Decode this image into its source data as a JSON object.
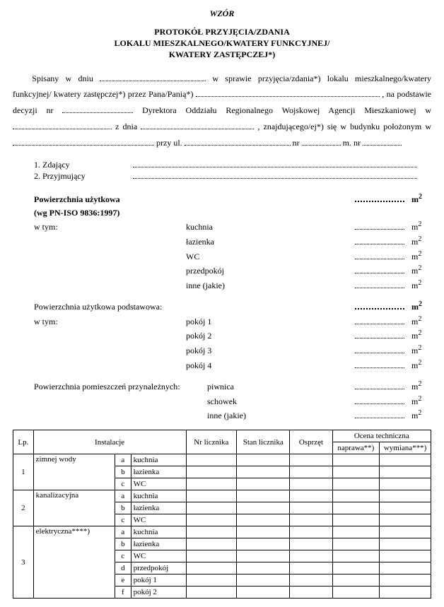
{
  "header": {
    "wzor": "WZÓR",
    "title_l1": "PROTOKÓŁ PRZYJĘCIA/ZDANIA",
    "title_l2": "LOKALU MIESZKALNEGO/KWATERY FUNKCYJNEJ/",
    "title_l3": "KWATERY ZASTĘPCZEJ*)"
  },
  "intro": {
    "p1a": "Spisany w dniu ",
    "p1b": " w sprawie przyjęcia/zdania*) lokalu mieszkalnego/kwatery funkcyjnej/",
    "p2a": "kwatery zastępczej*) przez Pana/Panią*) ",
    "p2b": ", na podstawie decyzji",
    "p3a": "nr ",
    "p3b": " Dyrektora Oddziału Regionalnego Wojskowej Agencji Mieszkaniowej w ",
    "p4a": "z dnia ",
    "p4b": ", znajdującego/ej*) się w budynku położonym w ",
    "p5a": "przy ul. ",
    "p5b": " nr ",
    "p5c": " m. nr "
  },
  "people": {
    "l1": "1. Zdający",
    "l2": "2. Przyjmujący"
  },
  "areas": {
    "useful_label": "Powierzchnia użytkowa",
    "useful_note": "(wg PN-ISO 9836:1997)",
    "incl": "w tym:",
    "basic_label": "Powierzchnia użytkowa podstawowa:",
    "aux_label": "Powierzchnia pomieszczeń przynależnych:",
    "rooms_util": [
      "kuchnia",
      "łazienka",
      "WC",
      "przedpokój",
      "inne (jakie)"
    ],
    "rooms_basic": [
      "pokój 1",
      "pokój 2",
      "pokój 3",
      "pokój 4"
    ],
    "rooms_aux": [
      "piwnica",
      "schowek",
      "inne (jakie)"
    ],
    "unit": "m",
    "unit_sup": "2"
  },
  "table": {
    "hdr": {
      "lp": "Lp.",
      "inst": "Instalacje",
      "nr": "Nr licznika",
      "stan": "Stan licznika",
      "osp": "Osprzęt",
      "ocena": "Ocena techniczna",
      "napr": "naprawa**)",
      "wym": "wymiana***)"
    },
    "rows": [
      {
        "lp": "1",
        "name": "zimnej wody",
        "sub": [
          {
            "l": "a",
            "r": "kuchnia"
          },
          {
            "l": "b",
            "r": "łazienka"
          },
          {
            "l": "c",
            "r": "WC"
          }
        ]
      },
      {
        "lp": "2",
        "name": "kanalizacyjna",
        "sub": [
          {
            "l": "a",
            "r": "kuchnia"
          },
          {
            "l": "b",
            "r": "łazienka"
          },
          {
            "l": "c",
            "r": "WC"
          }
        ]
      },
      {
        "lp": "3",
        "name": "elektryczna****)",
        "sub": [
          {
            "l": "a",
            "r": "kuchnia"
          },
          {
            "l": "b",
            "r": "łazienka"
          },
          {
            "l": "c",
            "r": "WC"
          },
          {
            "l": "d",
            "r": "przedpokój"
          },
          {
            "l": "e",
            "r": "pokój 1"
          },
          {
            "l": "f",
            "r": "pokój 2"
          }
        ]
      }
    ]
  }
}
